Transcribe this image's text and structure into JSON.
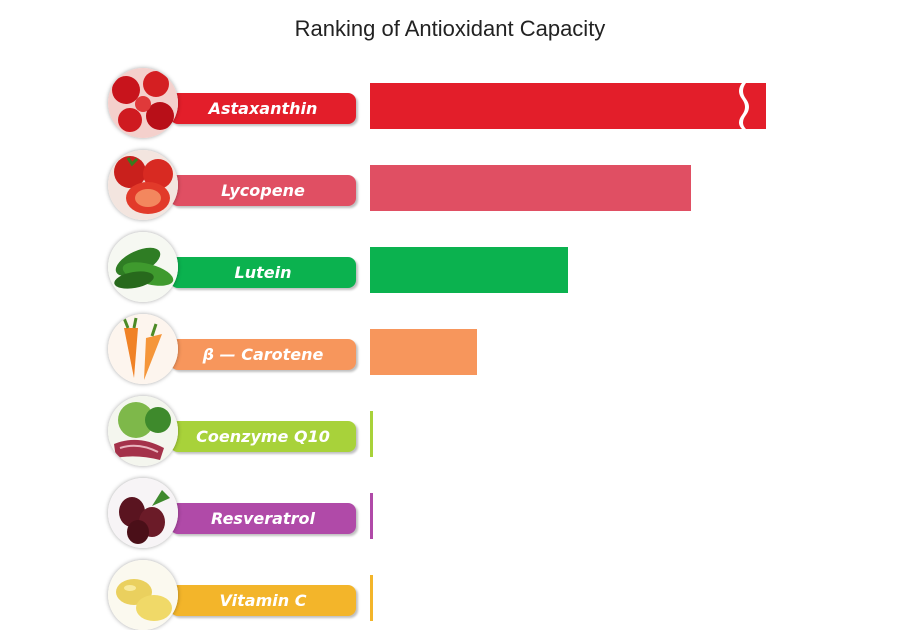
{
  "chart_data": {
    "type": "bar",
    "orientation": "horizontal",
    "title": "Ranking of Antioxidant Capacity",
    "categories": [
      "Astaxanthin",
      "Lycopene",
      "Lutein",
      "β — Carotene",
      "Coenzyme Q10",
      "Resveratrol",
      "Vitamin C"
    ],
    "values": [
      100,
      81,
      50,
      27,
      0.6,
      0.6,
      0.6
    ],
    "colors": [
      "#e31e2a",
      "#e04f63",
      "#0bb24f",
      "#f7965c",
      "#a8d23a",
      "#b04aa8",
      "#f3b52a"
    ],
    "axis_break": {
      "series_index": 0,
      "marker": "wavy"
    },
    "icons": [
      "red-cells-icon",
      "tomato-icon",
      "spinach-icon",
      "carrot-icon",
      "vegetables-meat-icon",
      "grape-icon",
      "lemon-icon"
    ],
    "xlabel": "",
    "ylabel": "",
    "grid": false,
    "legend": "none"
  }
}
